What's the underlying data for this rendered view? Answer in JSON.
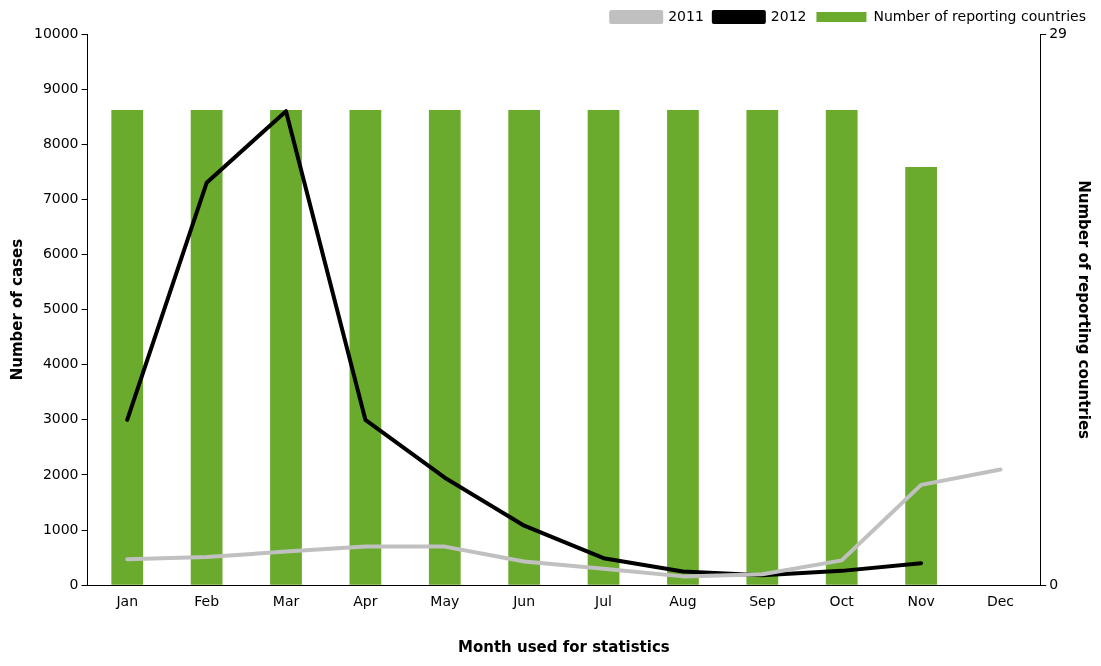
{
  "chart_data": {
    "type": "bar",
    "xlabel": "Month used for statistics",
    "ylabel": "Number of cases",
    "y2label": "Number of reporting countries",
    "categories": [
      "Jan",
      "Feb",
      "Mar",
      "Apr",
      "May",
      "Jun",
      "Jul",
      "Aug",
      "Sep",
      "Oct",
      "Nov",
      "Dec"
    ],
    "series": [
      {
        "name": "Number of reporting countries",
        "axis": "y2",
        "color": "#6aab2e",
        "values": [
          25,
          25,
          25,
          25,
          25,
          25,
          25,
          25,
          25,
          25,
          22,
          null
        ]
      },
      {
        "name": "2011",
        "type": "line",
        "color": "#c0c0c0",
        "values": [
          470,
          510,
          610,
          700,
          700,
          430,
          300,
          160,
          200,
          450,
          1820,
          2100
        ]
      },
      {
        "name": "2012",
        "type": "line",
        "color": "#000000",
        "values": [
          3000,
          7300,
          8600,
          3000,
          1950,
          1080,
          490,
          250,
          180,
          260,
          400,
          null
        ]
      }
    ],
    "ylim": [
      0,
      10000
    ],
    "yticks": [
      0,
      1000,
      2000,
      3000,
      4000,
      5000,
      6000,
      7000,
      8000,
      9000,
      10000
    ],
    "y2lim": [
      0,
      29
    ],
    "y2ticks": [
      0,
      29
    ],
    "grid": false,
    "legend": "top right",
    "marker": "none",
    "line_style": "solid"
  }
}
